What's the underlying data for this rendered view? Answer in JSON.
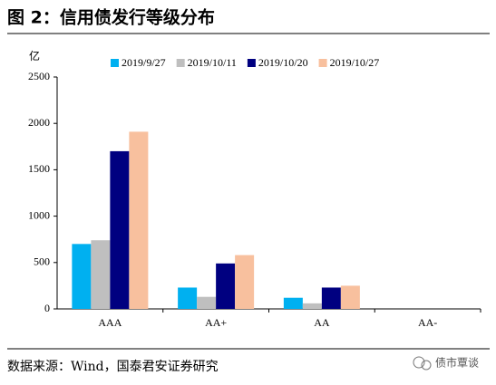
{
  "header": {
    "title": "图 2：信用债发行等级分布"
  },
  "chart_data": {
    "type": "bar",
    "y_label": "亿",
    "categories": [
      "AAA",
      "AA+",
      "AA",
      "AA-"
    ],
    "series": [
      {
        "name": "2019/9/27",
        "color": "#00b0f0",
        "values": [
          700,
          230,
          120,
          0
        ]
      },
      {
        "name": "2019/10/11",
        "color": "#bfbfbf",
        "values": [
          740,
          130,
          60,
          0
        ]
      },
      {
        "name": "2019/10/20",
        "color": "#000080",
        "values": [
          1700,
          490,
          230,
          0
        ]
      },
      {
        "name": "2019/10/27",
        "color": "#f8c09e",
        "values": [
          1910,
          580,
          250,
          0
        ]
      }
    ],
    "ylim": [
      0,
      2500
    ],
    "yticks": [
      0,
      500,
      1000,
      1500,
      2000,
      2500
    ],
    "grid": false,
    "legend": "top"
  },
  "footer": {
    "source": "数据来源：Wind，国泰君安证券研究",
    "watermark": "债市覃谈"
  }
}
